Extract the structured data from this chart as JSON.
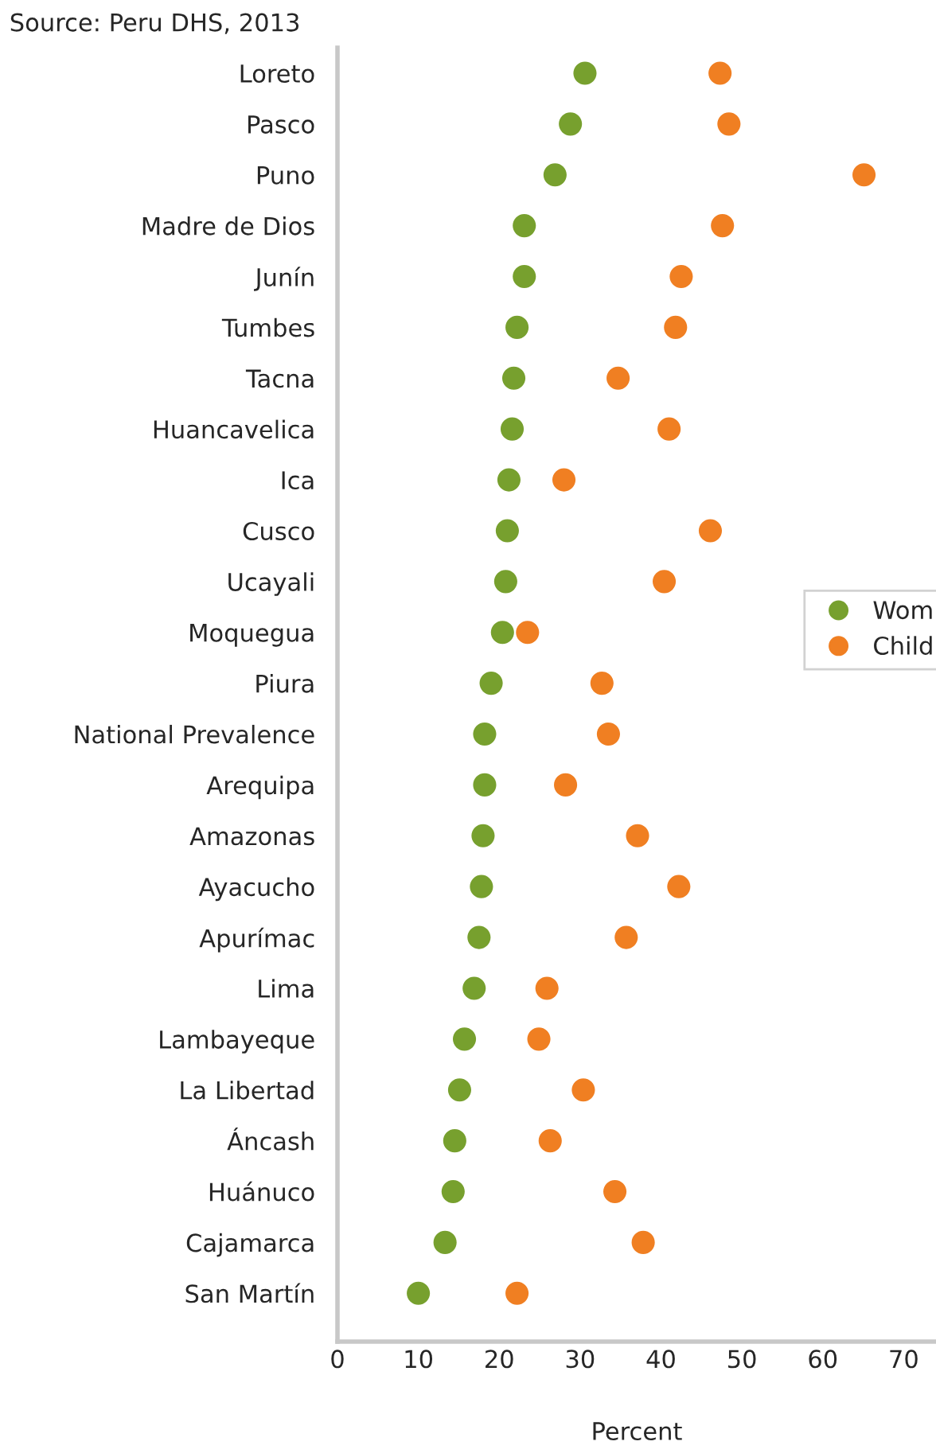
{
  "chart_data": {
    "type": "scatter",
    "orientation": "horizontal",
    "annotations": [
      "Source: Peru DHS, 2013"
    ],
    "xlabel": "Percent",
    "categories": [
      "Loreto",
      "Pasco",
      "Puno",
      "Madre de Dios",
      "Junín",
      "Tumbes",
      "Tacna",
      "Huancavelica",
      "Ica",
      "Cusco",
      "Ucayali",
      "Moquegua",
      "Piura",
      "National Prevalence",
      "Arequipa",
      "Amazonas",
      "Ayacucho",
      "Apurímac",
      "Lima",
      "Lambayeque",
      "La Libertad",
      "Áncash",
      "Huánuco",
      "Cajamarca",
      "San Martín"
    ],
    "series": [
      {
        "name": "Wom",
        "color": "#77a02e",
        "values": [
          30.6,
          28.8,
          26.9,
          23.1,
          23.1,
          22.2,
          21.8,
          21.6,
          21.2,
          21.0,
          20.8,
          20.4,
          19.0,
          18.2,
          18.2,
          18.0,
          17.8,
          17.5,
          16.9,
          15.7,
          15.1,
          14.5,
          14.3,
          13.3,
          10.0
        ]
      },
      {
        "name": "Child",
        "color": "#f07f22",
        "values": [
          47.3,
          48.4,
          65.1,
          47.6,
          42.5,
          41.8,
          34.7,
          41.0,
          28.0,
          46.1,
          40.4,
          23.5,
          32.7,
          33.5,
          28.2,
          37.1,
          42.2,
          35.7,
          25.9,
          24.9,
          30.4,
          26.3,
          34.3,
          37.8,
          22.2
        ]
      }
    ],
    "xlim": [
      0,
      74
    ],
    "xticks": [
      0,
      10,
      20,
      30,
      40,
      50,
      60,
      70
    ],
    "grid": false,
    "legend": "right",
    "marker": "circle"
  }
}
